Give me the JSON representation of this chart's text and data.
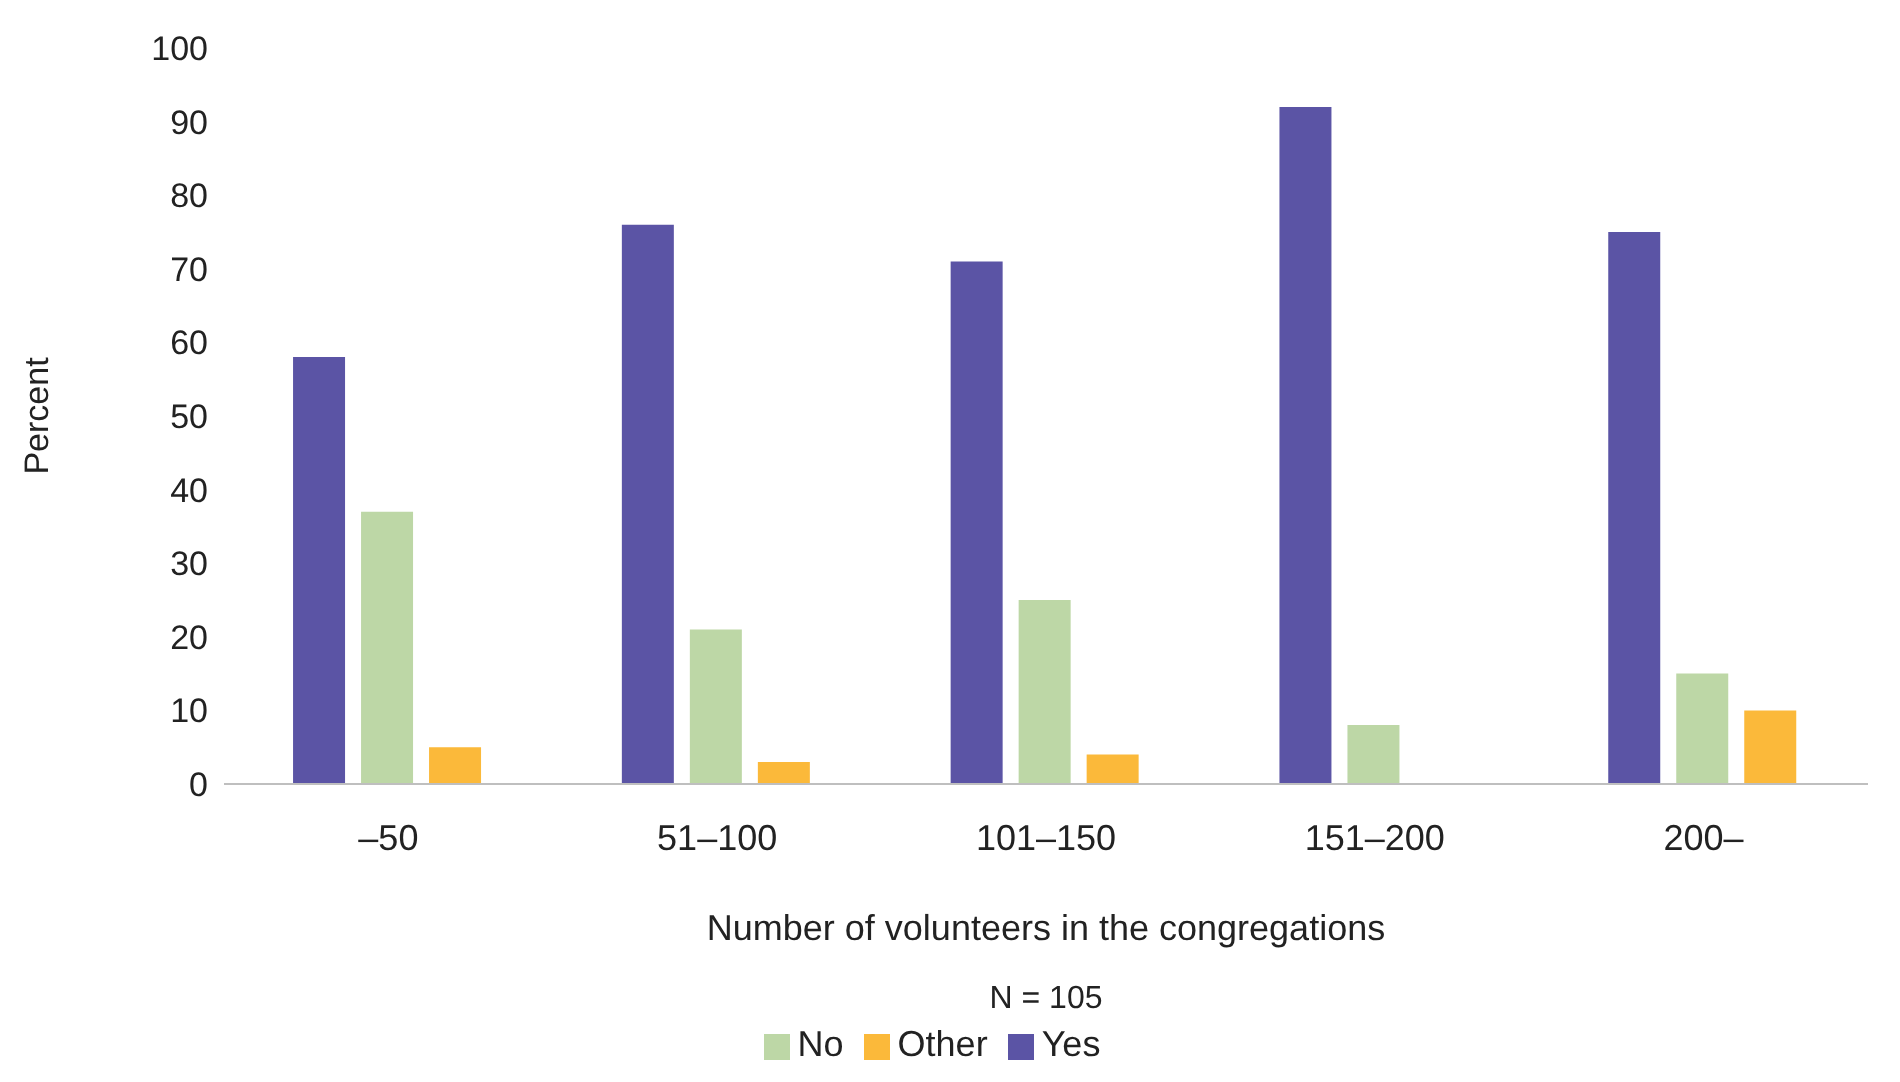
{
  "chart_data": {
    "type": "bar",
    "xlabel": "Number of volunteers in the congregations",
    "ylabel": "Percent",
    "annotations": [
      "N = 105"
    ],
    "categories": [
      "–50",
      "51–100",
      "101–150",
      "151–200",
      "200–"
    ],
    "series": [
      {
        "name": "Yes",
        "color": "#5b54a5",
        "values": [
          58,
          76,
          71,
          92,
          75
        ]
      },
      {
        "name": "No",
        "color": "#bdd7a6",
        "values": [
          37,
          21,
          25,
          8,
          15
        ]
      },
      {
        "name": "Other",
        "color": "#fbb93a",
        "values": [
          5,
          3,
          4,
          0,
          10
        ]
      }
    ],
    "ylim": [
      0,
      100
    ],
    "yticks": [
      0,
      10,
      20,
      30,
      40,
      50,
      60,
      70,
      80,
      90,
      100
    ],
    "grid": false,
    "legend": "bottom"
  }
}
